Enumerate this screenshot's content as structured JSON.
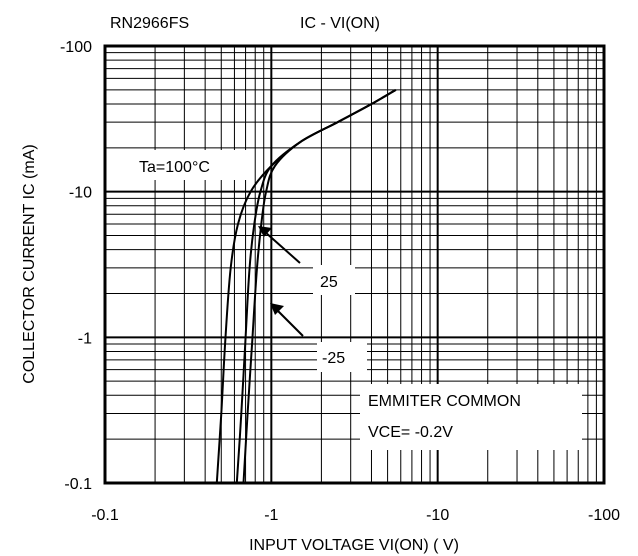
{
  "chart_data": {
    "type": "line",
    "part_number": "RN2966FS",
    "title": "IC - VI(ON)",
    "xlabel": "INPUT VOLTAGE   VI(ON) ( V)",
    "ylabel": "COLLECTOR CURRENT IC (mA)",
    "x_scale": "log",
    "y_scale": "log",
    "xlim": [
      -0.1,
      -100
    ],
    "ylim": [
      -0.1,
      -100
    ],
    "x_ticks": [
      {
        "value": -0.1,
        "label": "-0.1"
      },
      {
        "value": -1,
        "label": "-1"
      },
      {
        "value": -10,
        "label": "-10"
      },
      {
        "value": -100,
        "label": "-100"
      }
    ],
    "y_ticks": [
      {
        "value": -0.1,
        "label": "-0.1"
      },
      {
        "value": -1,
        "label": "-1"
      },
      {
        "value": -10,
        "label": "-10"
      },
      {
        "value": -100,
        "label": "-100"
      }
    ],
    "grid": true,
    "series": [
      {
        "name": "Ta=100°C",
        "x": [
          -0.47,
          -0.5,
          -0.53,
          -0.57,
          -0.63,
          -0.75,
          -1.0,
          -1.5,
          -2.5,
          -4.0,
          -5.6
        ],
        "y": [
          -0.1,
          -0.3,
          -1,
          -3,
          -6,
          -10,
          -15,
          -22,
          -30,
          -40,
          -50
        ]
      },
      {
        "name": "25",
        "x": [
          -0.62,
          -0.66,
          -0.7,
          -0.74,
          -0.79,
          -0.86,
          -1.0,
          -1.5,
          -2.5,
          -4.0,
          -5.6
        ],
        "y": [
          -0.1,
          -0.3,
          -1,
          -3,
          -6,
          -10,
          -15,
          -22,
          -30,
          -40,
          -50
        ]
      },
      {
        "name": "-25",
        "x": [
          -0.68,
          -0.72,
          -0.77,
          -0.82,
          -0.87,
          -0.93,
          -1.05,
          -1.5,
          -2.5,
          -4.0,
          -5.6
        ],
        "y": [
          -0.1,
          -0.3,
          -1,
          -3,
          -6,
          -10,
          -15,
          -22,
          -30,
          -40,
          -50
        ]
      }
    ],
    "annotations": {
      "ta": "Ta=100°C",
      "t25": "25",
      "tm25": "-25",
      "cond1": "EMMITER COMMON",
      "cond2": "VCE= -0.2V"
    }
  }
}
